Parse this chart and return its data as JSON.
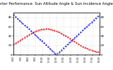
{
  "title": "Solar PV/Inverter Performance  Sun Altitude Angle & Sun Incidence Angle on PV Panels",
  "title_fontsize": 3.8,
  "blue_label": "Sun Altitude Angle",
  "red_label": "Sun Incidence Angle",
  "ylim": [
    0,
    90
  ],
  "right_ytick_labels": [
    "80",
    "60",
    "40",
    "20",
    "0"
  ],
  "right_yticks": [
    80,
    60,
    40,
    20,
    0
  ],
  "left_ytick_labels": [
    "80",
    "60",
    "40",
    "20",
    "0"
  ],
  "left_yticks": [
    80,
    60,
    40,
    20,
    0
  ],
  "background_color": "#ffffff",
  "grid_color": "#aaaaaa",
  "blue_color": "#0000dd",
  "red_color": "#dd0000",
  "n_points": 120
}
